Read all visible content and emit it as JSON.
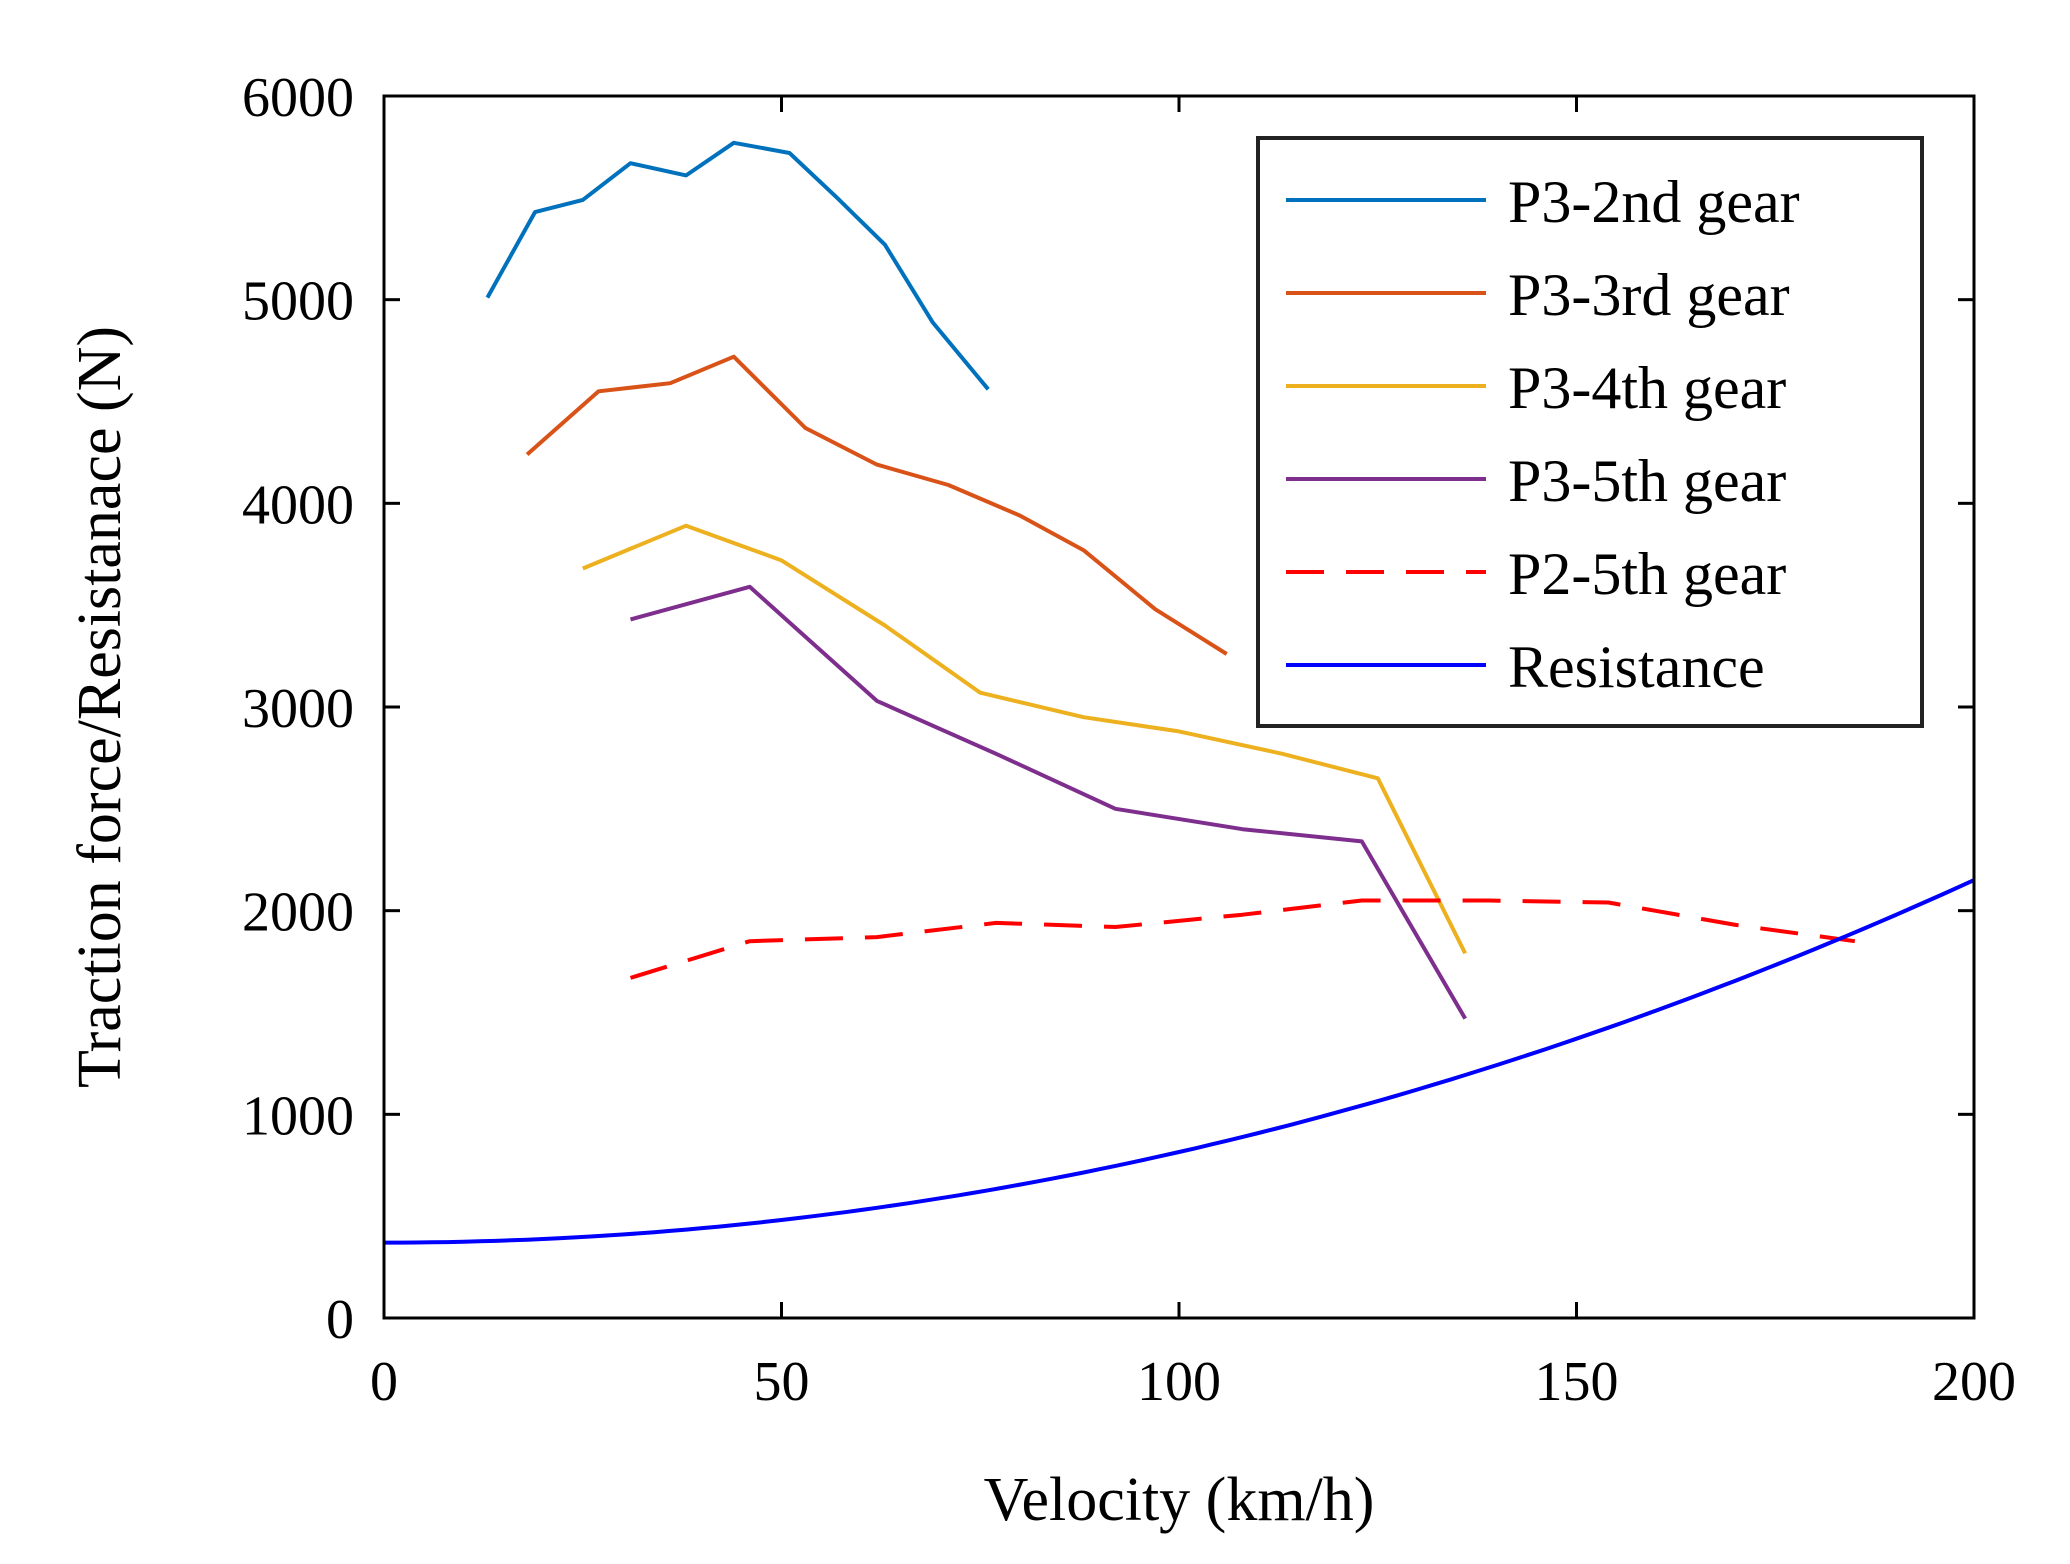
{
  "chart_data": {
    "type": "line",
    "xlabel": "Velocity (km/h)",
    "ylabel": "Traction force/Resistanace (N)",
    "xlim": [
      0,
      200
    ],
    "ylim": [
      0,
      6000
    ],
    "xticks": [
      0,
      50,
      100,
      150,
      200
    ],
    "yticks": [
      0,
      1000,
      2000,
      3000,
      4000,
      5000,
      6000
    ],
    "xtick_labels": [
      "0",
      "50",
      "100",
      "150",
      "200"
    ],
    "ytick_labels": [
      "0",
      "1000",
      "2000",
      "3000",
      "4000",
      "5000",
      "6000"
    ],
    "grid": false,
    "legend_position": "top-right",
    "series": [
      {
        "name": "P3-2nd gear",
        "color": "#0072BD",
        "dash": "solid",
        "x": [
          13,
          19,
          25,
          31,
          38,
          44,
          51,
          57,
          63,
          69,
          76
        ],
        "y": [
          5010,
          5430,
          5490,
          5670,
          5610,
          5770,
          5720,
          5500,
          5270,
          4890,
          4560
        ]
      },
      {
        "name": "P3-3rd gear",
        "color": "#D95319",
        "dash": "solid",
        "x": [
          18,
          27,
          36,
          44,
          53,
          62,
          71,
          80,
          88,
          97,
          106
        ],
        "y": [
          4240,
          4550,
          4590,
          4720,
          4370,
          4190,
          4090,
          3940,
          3770,
          3480,
          3260
        ]
      },
      {
        "name": "P3-4th gear",
        "color": "#EDB120",
        "dash": "solid",
        "x": [
          25,
          38,
          50,
          63,
          75,
          88,
          100,
          113,
          125,
          136
        ],
        "y": [
          3680,
          3890,
          3720,
          3400,
          3070,
          2950,
          2880,
          2770,
          2650,
          1790
        ]
      },
      {
        "name": "P3-5th gear",
        "color": "#7E2F8E",
        "dash": "solid",
        "x": [
          31,
          46,
          62,
          77,
          92,
          108,
          123,
          136
        ],
        "y": [
          3430,
          3590,
          3030,
          2770,
          2500,
          2400,
          2340,
          1470
        ]
      },
      {
        "name": "P2-5th gear",
        "color": "#FF0000",
        "dash": "dashed",
        "x": [
          31,
          46,
          62,
          77,
          92,
          108,
          123,
          139,
          154,
          170,
          185
        ],
        "y": [
          1670,
          1850,
          1870,
          1940,
          1920,
          1980,
          2050,
          2050,
          2040,
          1930,
          1850
        ]
      },
      {
        "name": "Resistance",
        "color": "#0000FF",
        "dash": "solid",
        "model": "quadratic",
        "x": [
          0,
          25,
          50,
          75,
          100,
          125,
          150,
          175,
          200
        ],
        "y": [
          370,
          398,
          481,
          620,
          815,
          1066,
          1372,
          1734,
          2150
        ]
      }
    ]
  }
}
